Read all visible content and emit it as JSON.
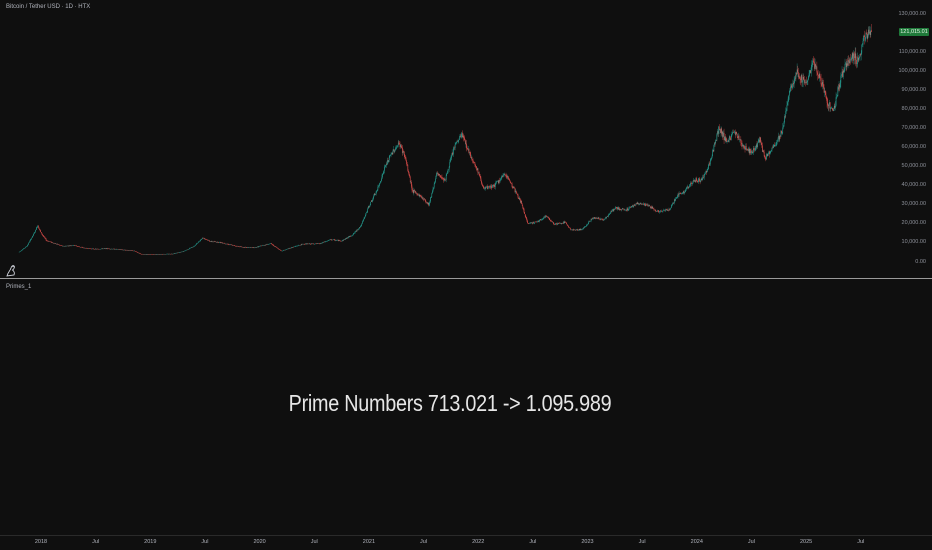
{
  "header": {
    "title": "Bitcoin / Tether USD · 1D · HTX"
  },
  "indicator": {
    "label": "Primes_1",
    "text": "Prime Numbers 713.021 -> 1.095.989"
  },
  "last_price_label": "121,015.01",
  "colors": {
    "background": "#0f0f0f",
    "up": "#26a69a",
    "down": "#ef5350",
    "last_price_bg": "#1f7a3a"
  },
  "chart_data": {
    "type": "line",
    "title": "Bitcoin / Tether USD · 1D · HTX",
    "xlabel": "",
    "ylabel": "",
    "ylim": [
      -2000,
      133000
    ],
    "y_ticks": [
      "130,000.00",
      "120,000.00",
      "110,000.00",
      "100,000.00",
      "90,000.00",
      "80,000.00",
      "70,000.00",
      "60,000.00",
      "50,000.00",
      "40,000.00",
      "30,000.00",
      "20,000.00",
      "10,000.00",
      "0.00"
    ],
    "x_ticks": [
      {
        "label": "2018",
        "t": 2018.0
      },
      {
        "label": "Jul",
        "t": 2018.5
      },
      {
        "label": "2019",
        "t": 2019.0
      },
      {
        "label": "Jul",
        "t": 2019.5
      },
      {
        "label": "2020",
        "t": 2020.0
      },
      {
        "label": "Jul",
        "t": 2020.5
      },
      {
        "label": "2021",
        "t": 2021.0
      },
      {
        "label": "Jul",
        "t": 2021.5
      },
      {
        "label": "2022",
        "t": 2022.0
      },
      {
        "label": "Jul",
        "t": 2022.5
      },
      {
        "label": "2023",
        "t": 2023.0
      },
      {
        "label": "Jul",
        "t": 2023.5
      },
      {
        "label": "2024",
        "t": 2024.0
      },
      {
        "label": "Jul",
        "t": 2024.5
      },
      {
        "label": "2025",
        "t": 2025.0
      },
      {
        "label": "Jul",
        "t": 2025.5
      }
    ],
    "series": [
      {
        "values": [
          [
            2017.8,
            5000
          ],
          [
            2017.87,
            8000
          ],
          [
            2017.93,
            14000
          ],
          [
            2017.97,
            19000
          ],
          [
            2018.0,
            15000
          ],
          [
            2018.05,
            11000
          ],
          [
            2018.1,
            10000
          ],
          [
            2018.2,
            8000
          ],
          [
            2018.3,
            8500
          ],
          [
            2018.4,
            7000
          ],
          [
            2018.5,
            6500
          ],
          [
            2018.6,
            6800
          ],
          [
            2018.7,
            6400
          ],
          [
            2018.85,
            5600
          ],
          [
            2018.92,
            3800
          ],
          [
            2019.0,
            3700
          ],
          [
            2019.2,
            4000
          ],
          [
            2019.3,
            5200
          ],
          [
            2019.4,
            8000
          ],
          [
            2019.48,
            12500
          ],
          [
            2019.55,
            10500
          ],
          [
            2019.65,
            10000
          ],
          [
            2019.75,
            8500
          ],
          [
            2019.85,
            7500
          ],
          [
            2019.95,
            7200
          ],
          [
            2020.1,
            9500
          ],
          [
            2020.2,
            5500
          ],
          [
            2020.3,
            7500
          ],
          [
            2020.4,
            9200
          ],
          [
            2020.55,
            9300
          ],
          [
            2020.65,
            11500
          ],
          [
            2020.75,
            10800
          ],
          [
            2020.85,
            14000
          ],
          [
            2020.93,
            19000
          ],
          [
            2021.0,
            29000
          ],
          [
            2021.08,
            38000
          ],
          [
            2021.15,
            50000
          ],
          [
            2021.22,
            58000
          ],
          [
            2021.28,
            62000
          ],
          [
            2021.33,
            55000
          ],
          [
            2021.4,
            37000
          ],
          [
            2021.48,
            34000
          ],
          [
            2021.55,
            30000
          ],
          [
            2021.62,
            46000
          ],
          [
            2021.7,
            43000
          ],
          [
            2021.78,
            60000
          ],
          [
            2021.85,
            67000
          ],
          [
            2021.92,
            57000
          ],
          [
            2022.0,
            47000
          ],
          [
            2022.05,
            38000
          ],
          [
            2022.15,
            40000
          ],
          [
            2022.25,
            46000
          ],
          [
            2022.33,
            38000
          ],
          [
            2022.4,
            30000
          ],
          [
            2022.45,
            20000
          ],
          [
            2022.55,
            21000
          ],
          [
            2022.62,
            24000
          ],
          [
            2022.7,
            19500
          ],
          [
            2022.8,
            20500
          ],
          [
            2022.85,
            16500
          ],
          [
            2022.95,
            16800
          ],
          [
            2023.05,
            23000
          ],
          [
            2023.15,
            22000
          ],
          [
            2023.25,
            28000
          ],
          [
            2023.35,
            27000
          ],
          [
            2023.45,
            30500
          ],
          [
            2023.55,
            29500
          ],
          [
            2023.65,
            26000
          ],
          [
            2023.75,
            27500
          ],
          [
            2023.82,
            34500
          ],
          [
            2023.9,
            37500
          ],
          [
            2023.97,
            42500
          ],
          [
            2024.05,
            43000
          ],
          [
            2024.12,
            52000
          ],
          [
            2024.2,
            70000
          ],
          [
            2024.28,
            63000
          ],
          [
            2024.35,
            68000
          ],
          [
            2024.42,
            61000
          ],
          [
            2024.5,
            57000
          ],
          [
            2024.58,
            64000
          ],
          [
            2024.62,
            54000
          ],
          [
            2024.7,
            60000
          ],
          [
            2024.78,
            68000
          ],
          [
            2024.85,
            90000
          ],
          [
            2024.92,
            99000
          ],
          [
            2025.0,
            94000
          ],
          [
            2025.06,
            104000
          ],
          [
            2025.12,
            97000
          ],
          [
            2025.2,
            84000
          ],
          [
            2025.25,
            78000
          ],
          [
            2025.3,
            93000
          ],
          [
            2025.37,
            104000
          ],
          [
            2025.42,
            108000
          ],
          [
            2025.48,
            105000
          ],
          [
            2025.53,
            118000
          ],
          [
            2025.58,
            119000
          ],
          [
            2025.6,
            121000
          ]
        ]
      }
    ]
  }
}
